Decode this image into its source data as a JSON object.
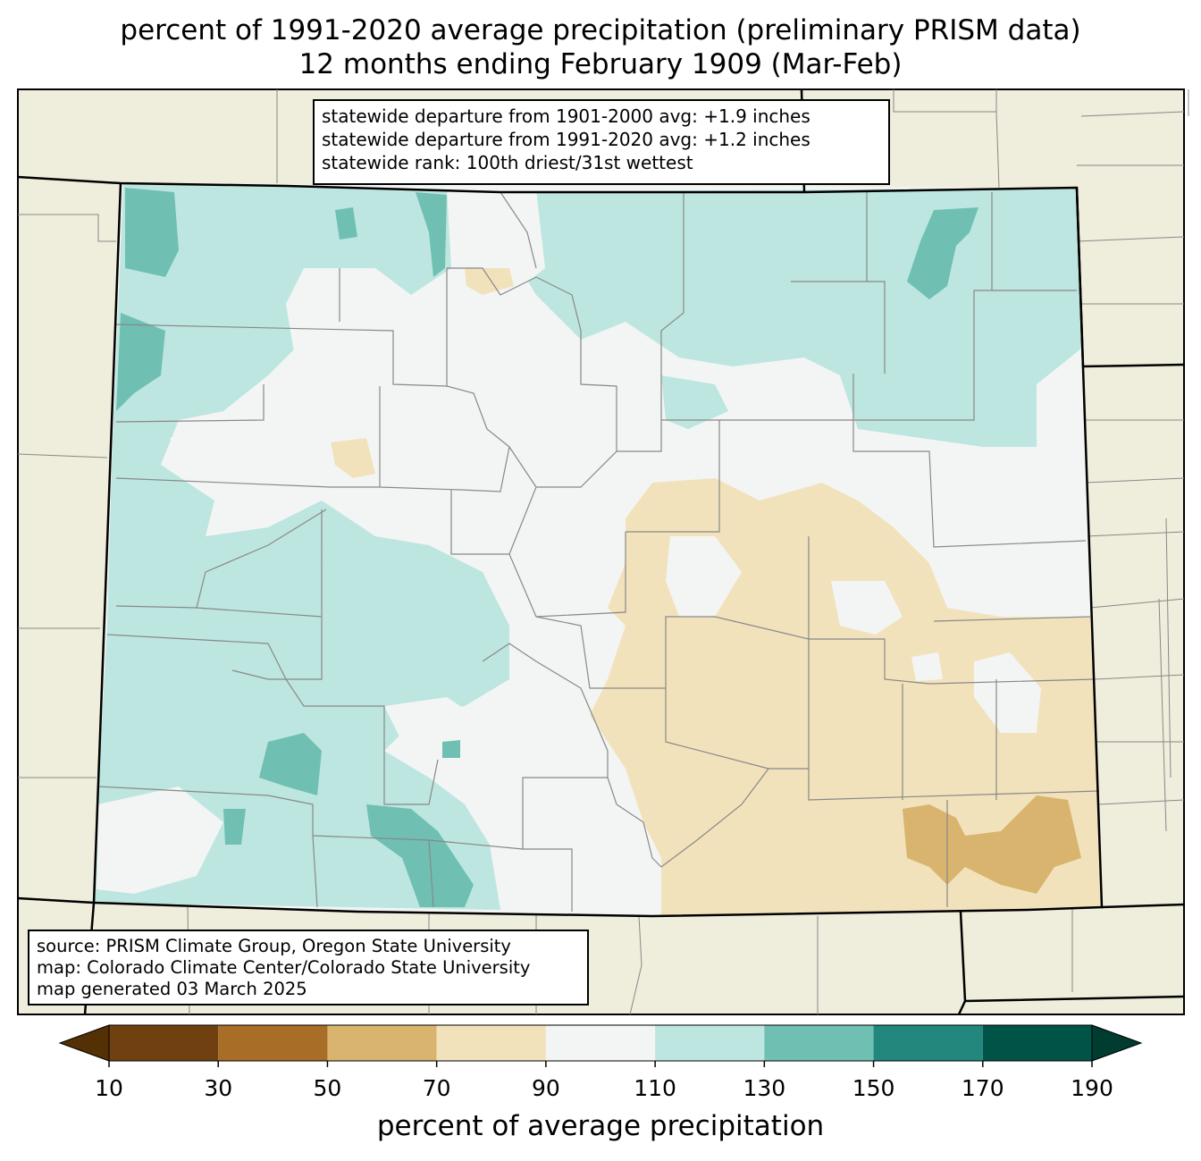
{
  "title": {
    "line1": "percent of 1991-2020 average precipitation (preliminary PRISM data)",
    "line2": "12 months ending February 1909 (Mar-Feb)"
  },
  "stats": {
    "line1": "statewide departure from 1901-2000 avg: +1.9 inches",
    "line2": "statewide departure from 1991-2020 avg: +1.2 inches",
    "line3": "statewide rank: 100th driest/31st wettest"
  },
  "source": {
    "line1": "source: PRISM Climate Group, Oregon State University",
    "line2": "map: Colorado Climate Center/Colorado State University",
    "line3": "map generated 03 March 2025"
  },
  "colorbar": {
    "label": "percent of average precipitation",
    "ticks": [
      "10",
      "30",
      "50",
      "70",
      "90",
      "110",
      "130",
      "150",
      "170",
      "190"
    ],
    "colors": [
      "#704010",
      "#a86d26",
      "#d8b46e",
      "#f2e2bc",
      "#f3f5f4",
      "#bde6e0",
      "#6fc0b2",
      "#22877d",
      "#005347"
    ],
    "under_color": "#543005",
    "over_color": "#003c30"
  },
  "map": {
    "background_color": "#efeddc",
    "state_fill_default": "#f3f5f4",
    "dominant_regions": [
      {
        "region": "northwest",
        "category": "110-130"
      },
      {
        "region": "north-central",
        "category": "110-130"
      },
      {
        "region": "northeast",
        "category": "110-130"
      },
      {
        "region": "southwest",
        "category": "110-150"
      },
      {
        "region": "central mountains",
        "category": "90-110"
      },
      {
        "region": "southeast plains",
        "category": "70-90"
      },
      {
        "region": "far southeast",
        "category": "50-70"
      }
    ]
  }
}
